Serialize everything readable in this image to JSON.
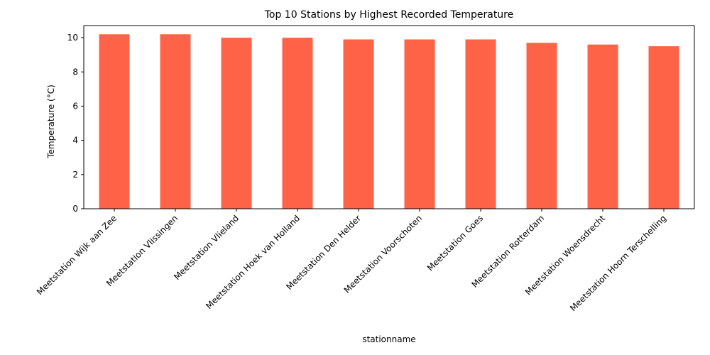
{
  "chart_data": {
    "type": "bar",
    "title": "Top 10 Stations by Highest Recorded Temperature",
    "xlabel": "stationname",
    "ylabel": "Temperature (°C)",
    "categories": [
      "Meetstation Wijk aan Zee",
      "Meetstation Vlissingen",
      "Meetstation Vlieland",
      "Meetstation Hoek van Holland",
      "Meetstation Den Helder",
      "Meetstation Voorschoten",
      "Meetstation Goes",
      "Meetstation Rotterdam",
      "Meetstation Woensdrecht",
      "Meetstation Hoorn Terschelling"
    ],
    "values": [
      10.2,
      10.2,
      10.0,
      10.0,
      9.9,
      9.9,
      9.9,
      9.7,
      9.6,
      9.5
    ],
    "ylim": [
      0,
      10.71
    ],
    "yticks": [
      0,
      2,
      4,
      6,
      8,
      10
    ],
    "bar_color": "#ff6347",
    "grid": false,
    "legend": "none"
  }
}
